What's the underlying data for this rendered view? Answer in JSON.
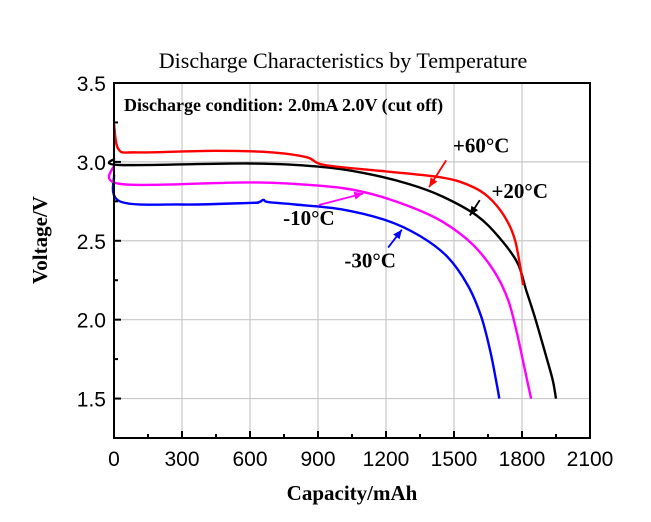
{
  "chart_data": {
    "type": "line",
    "title": "Discharge Characteristics by Temperature",
    "xlabel": "Capacity/mAh",
    "ylabel": "Voltage/V",
    "xlim": [
      0,
      2100
    ],
    "ylim": [
      1.25,
      3.5
    ],
    "xticks": [
      0,
      300,
      600,
      900,
      1200,
      1500,
      1800,
      2100
    ],
    "xtick_labels": [
      "0",
      "300",
      "600",
      "900",
      "1200",
      "1500",
      "1800",
      "2100"
    ],
    "yticks": [
      1.5,
      2.0,
      2.5,
      3.0,
      3.5
    ],
    "ytick_labels": [
      "1.5",
      "2.0",
      "2.5",
      "3.0",
      "3.5"
    ],
    "grid": true,
    "annotation": "Discharge condition: 2.0mA 2.0V (cut off)",
    "series": [
      {
        "name": "+60°C",
        "color": "#ff0000",
        "x": [
          0,
          20,
          100,
          450,
          700,
          850,
          930,
          1200,
          1450,
          1570,
          1650,
          1720,
          1770,
          1805
        ],
        "y": [
          3.24,
          3.08,
          3.06,
          3.07,
          3.06,
          3.03,
          2.98,
          2.94,
          2.9,
          2.85,
          2.78,
          2.66,
          2.5,
          2.22
        ],
        "label_at": [
          1550,
          2.94
        ],
        "arrow_to": [
          1390,
          2.84
        ],
        "label_anchor": [
          1620,
          3.06
        ]
      },
      {
        "name": "+20°C",
        "color": "#000000",
        "x": [
          0,
          30,
          600,
          900,
          1100,
          1300,
          1450,
          1600,
          1700,
          1780,
          1820,
          1860,
          1900,
          1935,
          1950
        ],
        "y": [
          3.02,
          2.98,
          2.99,
          2.97,
          2.93,
          2.86,
          2.78,
          2.66,
          2.52,
          2.36,
          2.18,
          2.0,
          1.8,
          1.62,
          1.5
        ],
        "arrow_to": [
          1570,
          2.66
        ],
        "label_anchor": [
          1790,
          2.77
        ]
      },
      {
        "name": "-10°C",
        "color": "#ff00ff",
        "x": [
          0,
          30,
          600,
          900,
          1100,
          1300,
          1450,
          1580,
          1680,
          1740,
          1780,
          1810,
          1840
        ],
        "y": [
          2.98,
          2.86,
          2.87,
          2.85,
          2.81,
          2.72,
          2.62,
          2.48,
          2.3,
          2.12,
          1.9,
          1.7,
          1.5
        ],
        "arrow_to": [
          1100,
          2.8
        ],
        "label_anchor": [
          860,
          2.6
        ]
      },
      {
        "name": "-30°C",
        "color": "#0000ff",
        "x": [
          0,
          25,
          300,
          600,
          640,
          660,
          680,
          800,
          1000,
          1200,
          1350,
          1470,
          1560,
          1620,
          1660,
          1685,
          1700
        ],
        "y": [
          2.92,
          2.75,
          2.73,
          2.74,
          2.745,
          2.76,
          2.745,
          2.73,
          2.7,
          2.63,
          2.53,
          2.4,
          2.22,
          2.02,
          1.8,
          1.62,
          1.5
        ],
        "arrow_to": [
          1270,
          2.57
        ],
        "label_anchor": [
          1130,
          2.33
        ]
      }
    ]
  }
}
